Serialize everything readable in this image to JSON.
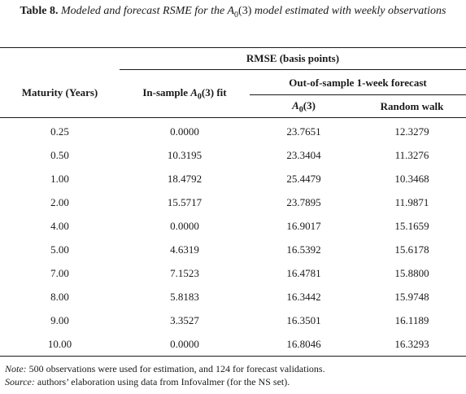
{
  "caption": {
    "label": "Table 8.",
    "text_before": "Modeled and forecast RSME for the ",
    "model_A": "A",
    "model_sub": "0",
    "model_arg": "(3)",
    "text_after": " model estimated with weekly observations"
  },
  "header": {
    "group_title": "RMSE (basis points)",
    "maturity": "Maturity (Years)",
    "insample_prefix": "In-sample ",
    "insample_A": "A",
    "insample_sub": "0",
    "insample_arg": "(3)",
    "insample_suffix": " fit",
    "oos_title": "Out-of-sample 1-week forecast",
    "oos_A": "A",
    "oos_sub": "0",
    "oos_arg": "(3)",
    "random_walk": "Random walk"
  },
  "rows": [
    [
      "0.25",
      "0.0000",
      "23.7651",
      "12.3279"
    ],
    [
      "0.50",
      "10.3195",
      "23.3404",
      "11.3276"
    ],
    [
      "1.00",
      "18.4792",
      "25.4479",
      "10.3468"
    ],
    [
      "2.00",
      "15.5717",
      "23.7895",
      "11.9871"
    ],
    [
      "4.00",
      "0.0000",
      "16.9017",
      "15.1659"
    ],
    [
      "5.00",
      "4.6319",
      "16.5392",
      "15.6178"
    ],
    [
      "7.00",
      "7.1523",
      "16.4781",
      "15.8800"
    ],
    [
      "8.00",
      "5.8183",
      "16.3442",
      "15.9748"
    ],
    [
      "9.00",
      "3.3527",
      "16.3501",
      "16.1189"
    ],
    [
      "10.00",
      "0.0000",
      "16.8046",
      "16.3293"
    ]
  ],
  "notes": {
    "note_label": "Note:",
    "note_text": " 500 observations were used for estimation, and 124 for forecast validations.",
    "source_label": "Source:",
    "source_text": " authors’ elaboration using data from Infovalmer (for the NS set)."
  }
}
